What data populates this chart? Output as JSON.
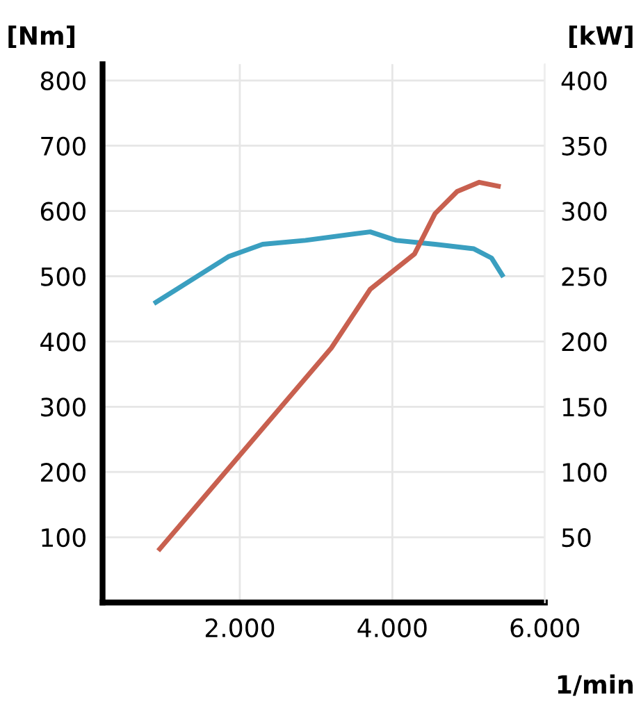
{
  "chart_data": {
    "type": "line",
    "xlabel": "1/min",
    "ylabel": "[Nm]",
    "y2label": "[kW]",
    "xlim": [
      200,
      6000
    ],
    "xticks": [
      {
        "value": 2000,
        "label": "2.000"
      },
      {
        "value": 4000,
        "label": "4.000"
      },
      {
        "value": 6000,
        "label": "6.000"
      }
    ],
    "ylim": [
      0,
      825
    ],
    "yticks": [
      100,
      200,
      300,
      400,
      500,
      600,
      700,
      800
    ],
    "y2lim": [
      0,
      412.5
    ],
    "y2ticks": [
      50,
      100,
      150,
      200,
      250,
      300,
      350,
      400
    ],
    "grid": true,
    "legend": false,
    "marker": "none",
    "line_style": "solid",
    "series": [
      {
        "color": "#3a9fc0",
        "x": [
          900,
          1850,
          2300,
          2860,
          3710,
          4050,
          4560,
          5070,
          5300,
          5440
        ],
        "values": [
          460,
          530,
          549,
          555,
          568,
          555,
          549,
          542,
          528,
          502
        ]
      },
      {
        "color": "#c8604f",
        "axis": "y2",
        "x": [
          950,
          3200,
          3710,
          4290,
          4560,
          4850,
          5140,
          5390
        ],
        "values": [
          41,
          195,
          240,
          267,
          298,
          315,
          322,
          319
        ]
      }
    ]
  }
}
